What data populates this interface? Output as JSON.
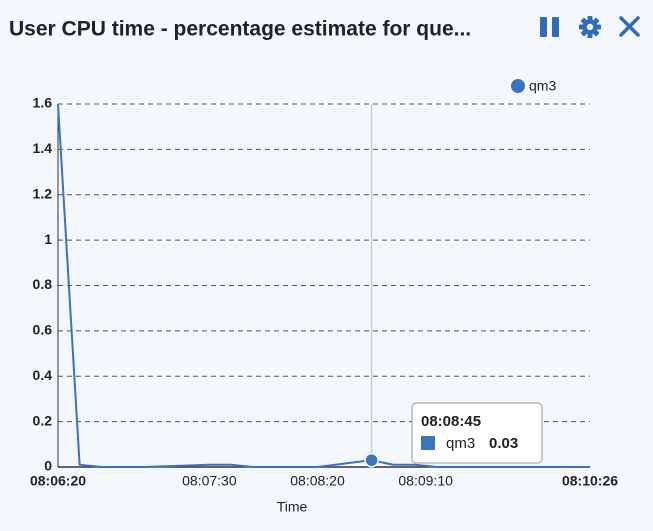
{
  "chart_data": {
    "type": "line",
    "title": "User CPU time - percentage estimate for que...",
    "x_label": "Time",
    "x": [
      "08:06:20",
      "08:06:30",
      "08:06:40",
      "08:07:00",
      "08:07:30",
      "08:07:40",
      "08:07:50",
      "08:08:20",
      "08:08:45",
      "08:08:55",
      "08:09:05",
      "08:09:15",
      "08:10:26"
    ],
    "series": [
      {
        "name": "qm3",
        "color": "#3a73c0",
        "values": [
          1.6,
          0.01,
          0,
          0,
          0.01,
          0.01,
          0,
          0,
          0.03,
          0.01,
          0.01,
          0,
          0
        ]
      }
    ],
    "xlim": [
      "08:06:20",
      "08:10:26"
    ],
    "xticks": [
      "08:06:20",
      "08:07:30",
      "08:08:20",
      "08:09:10",
      "08:10:26"
    ],
    "ylim": [
      0,
      1.6
    ],
    "yticks": [
      0,
      0.2,
      0.4,
      0.6,
      0.8,
      1,
      1.2,
      1.4,
      1.6
    ],
    "grid": true,
    "legend": "top-right",
    "tooltip_index": 8
  }
}
